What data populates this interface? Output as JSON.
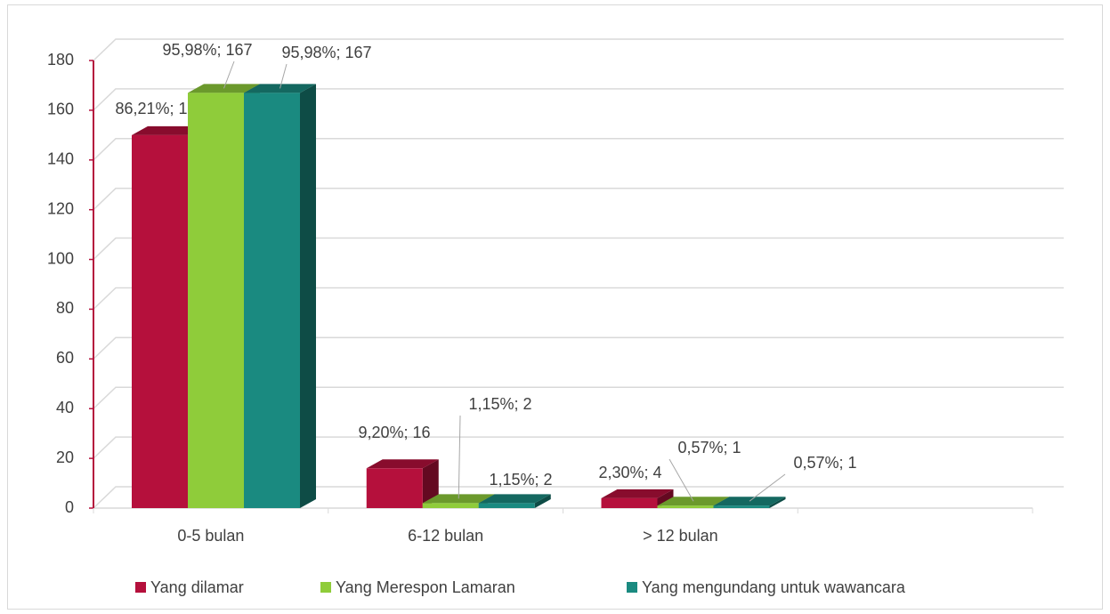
{
  "chart_data": {
    "type": "bar3d",
    "categories": [
      "0-5 bulan",
      "6-12 bulan",
      "> 12 bulan",
      null
    ],
    "series": [
      {
        "name": "Yang dilamar",
        "color": "#b5103c",
        "values": [
          150,
          16,
          4,
          null
        ],
        "value_labels": [
          "86,21%; 150",
          "9,20%; 16",
          "2,30%; 4",
          null
        ]
      },
      {
        "name": "Yang Merespon Lamaran",
        "color": "#8fcc3a",
        "values": [
          167,
          2,
          1,
          null
        ],
        "value_labels": [
          "95,98%; 167",
          "1,15%; 2",
          "0,57%; 1",
          null
        ]
      },
      {
        "name": "Yang mengundang untuk wawancara",
        "color": "#1a8a80",
        "values": [
          167,
          2,
          1,
          null
        ],
        "value_labels": [
          "95,98%; 167",
          "1,15%; 2",
          "0,57%; 1",
          null
        ]
      }
    ],
    "ylim": [
      0,
      180
    ],
    "yticks": [
      0,
      20,
      40,
      60,
      80,
      100,
      120,
      140,
      160,
      180
    ],
    "grid": true,
    "legend": "bottom"
  }
}
